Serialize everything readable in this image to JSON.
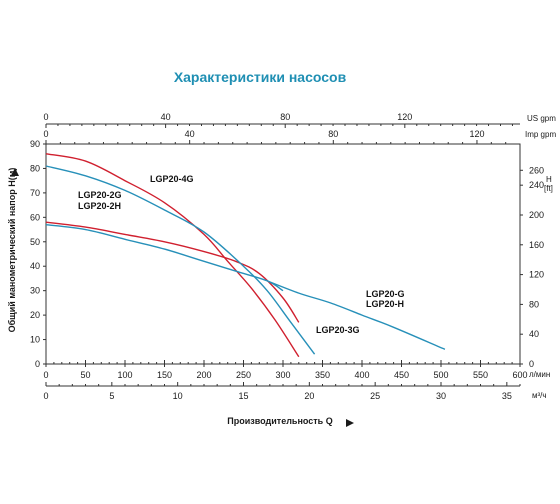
{
  "colors": {
    "title": "#1f8fb3",
    "red": "#d0202f",
    "blue": "#2790b9",
    "axis": "#333333"
  },
  "chart_data": {
    "type": "line",
    "title": "Характеристики насосов",
    "ylabel": "Общий манометрический напор  H(м)",
    "xlabel": "Производительность Q",
    "ylabel_right_unit": "H",
    "ylabel_right_unit2": "[ft]",
    "xunit_lmin": "л/мин",
    "xunit_m3h": "м³/ч",
    "xunit_us": "US gpm",
    "xunit_imp": "Imp gpm",
    "xlim_lmin": [
      0,
      600
    ],
    "ylim_m": [
      0,
      90
    ],
    "ticks": {
      "m": [
        "0",
        "10",
        "20",
        "30",
        "40",
        "50",
        "60",
        "70",
        "80",
        "90"
      ],
      "ft": [
        "0",
        "40",
        "80",
        "120",
        "160",
        "200",
        "240",
        "260"
      ],
      "lmin": [
        "0",
        "50",
        "100",
        "150",
        "200",
        "250",
        "300",
        "350",
        "400",
        "450",
        "500",
        "550",
        "600"
      ],
      "m3h": [
        "0",
        "5",
        "10",
        "15",
        "20",
        "25",
        "30",
        "35"
      ],
      "us": [
        "0",
        "40",
        "80",
        "120"
      ],
      "imp": [
        "0",
        "40",
        "80",
        "120"
      ]
    },
    "labels": {
      "g4": "LGP20-4G",
      "g2": "LGP20-2G",
      "h2": "LGP20-2H",
      "g": "LGP20-G",
      "h": "LGP20-H",
      "g3": "LGP20-3G"
    },
    "series": [
      {
        "name": "LGP20-4G",
        "color": "red",
        "x": [
          0,
          50,
          100,
          150,
          200,
          230,
          260,
          290,
          320
        ],
        "y": [
          86,
          83,
          75,
          66,
          53,
          42,
          31,
          18,
          3
        ]
      },
      {
        "name": "LGP20-2G",
        "color": "red",
        "x": [
          0,
          50,
          100,
          150,
          200,
          240,
          270,
          300,
          320
        ],
        "y": [
          58,
          56,
          53,
          50,
          46,
          42,
          37,
          27,
          17
        ]
      },
      {
        "name": "LGP20-2H",
        "color": "blue",
        "x": [
          0,
          50,
          100,
          150,
          200,
          240,
          280,
          300
        ],
        "y": [
          57,
          55,
          51,
          47,
          42,
          38,
          34,
          30
        ]
      },
      {
        "name": "LGP20-3G",
        "color": "blue",
        "x": [
          0,
          50,
          100,
          150,
          200,
          250,
          280,
          310,
          340
        ],
        "y": [
          81,
          77,
          71,
          63,
          54,
          40,
          30,
          17,
          4
        ]
      },
      {
        "name": "LGP20-G/H",
        "color": "blue",
        "x": [
          280,
          320,
          360,
          400,
          440,
          505
        ],
        "y": [
          34,
          29,
          25,
          20,
          15,
          6
        ]
      }
    ]
  }
}
